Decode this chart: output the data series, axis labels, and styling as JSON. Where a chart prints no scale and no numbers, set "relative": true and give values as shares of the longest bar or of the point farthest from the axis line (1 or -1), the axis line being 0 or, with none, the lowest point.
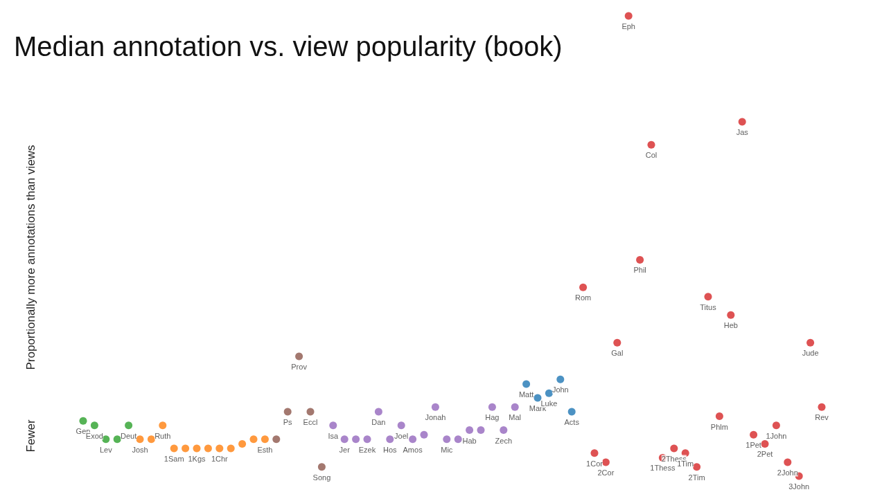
{
  "chart_data": {
    "type": "scatter",
    "title": "Median annotation vs. view popularity (book)",
    "ylabel": "Proportionally more annotations than views",
    "annotations": [
      "Fewer"
    ],
    "relative": true,
    "marker": "circle",
    "tick_labels": false,
    "categories": [
      "Gen",
      "Exod",
      "Lev",
      null,
      "Deut",
      "Josh",
      null,
      "Ruth",
      "1Sam",
      null,
      "1Kgs",
      null,
      "1Chr",
      null,
      null,
      null,
      "Esth",
      null,
      "Ps",
      "Prov",
      "Eccl",
      "Song",
      "Isa",
      "Jer",
      null,
      "Ezek",
      "Dan",
      "Hos",
      "Joel",
      "Amos",
      null,
      "Jonah",
      "Mic",
      null,
      "Hab",
      null,
      "Hag",
      "Zech",
      "Mal",
      "Matt",
      "Mark",
      "Luke",
      "John",
      "Acts",
      "Rom",
      "1Cor",
      "2Cor",
      "Gal",
      "Eph",
      "Phil",
      "Col",
      "1Thess",
      "2Thess",
      "1Tim",
      "2Tim",
      "Titus",
      "Phlm",
      "Heb",
      "Jas",
      "1Pet",
      "2Pet",
      "1John",
      "2John",
      "3John",
      "Jude",
      "Rev"
    ],
    "values": [
      0.12,
      0.11,
      0.08,
      0.08,
      0.11,
      0.08,
      0.08,
      0.11,
      0.06,
      0.06,
      0.06,
      0.06,
      0.06,
      0.06,
      0.07,
      0.08,
      0.08,
      0.08,
      0.14,
      0.26,
      0.14,
      0.02,
      0.11,
      0.08,
      0.08,
      0.08,
      0.14,
      0.08,
      0.11,
      0.08,
      0.09,
      0.15,
      0.08,
      0.08,
      0.1,
      0.1,
      0.15,
      0.1,
      0.15,
      0.2,
      0.17,
      0.18,
      0.21,
      0.14,
      0.41,
      0.05,
      0.03,
      0.29,
      1,
      0.47,
      0.72,
      0.04,
      0.06,
      0.05,
      0.02,
      0.39,
      0.13,
      0.35,
      0.77,
      0.09,
      0.07,
      0.11,
      0.03,
      0,
      0.29,
      0.15
    ],
    "colors": [
      "#2ca02c",
      "#2ca02c",
      "#2ca02c",
      "#2ca02c",
      "#2ca02c",
      "#ff7f0e",
      "#ff7f0e",
      "#ff7f0e",
      "#ff7f0e",
      "#ff7f0e",
      "#ff7f0e",
      "#ff7f0e",
      "#ff7f0e",
      "#ff7f0e",
      "#ff7f0e",
      "#ff7f0e",
      "#ff7f0e",
      "#8c564b",
      "#8c564b",
      "#8c564b",
      "#8c564b",
      "#8c564b",
      "#9467bd",
      "#9467bd",
      "#9467bd",
      "#9467bd",
      "#9467bd",
      "#9467bd",
      "#9467bd",
      "#9467bd",
      "#9467bd",
      "#9467bd",
      "#9467bd",
      "#9467bd",
      "#9467bd",
      "#9467bd",
      "#9467bd",
      "#9467bd",
      "#9467bd",
      "#1f77b4",
      "#1f77b4",
      "#1f77b4",
      "#1f77b4",
      "#1f77b4",
      "#d62728",
      "#d62728",
      "#d62728",
      "#d62728",
      "#d62728",
      "#d62728",
      "#d62728",
      "#d62728",
      "#d62728",
      "#d62728",
      "#d62728",
      "#d62728",
      "#d62728",
      "#d62728",
      "#d62728",
      "#d62728",
      "#d62728",
      "#d62728",
      "#d62728",
      "#d62728",
      "#d62728",
      "#d62728"
    ]
  }
}
